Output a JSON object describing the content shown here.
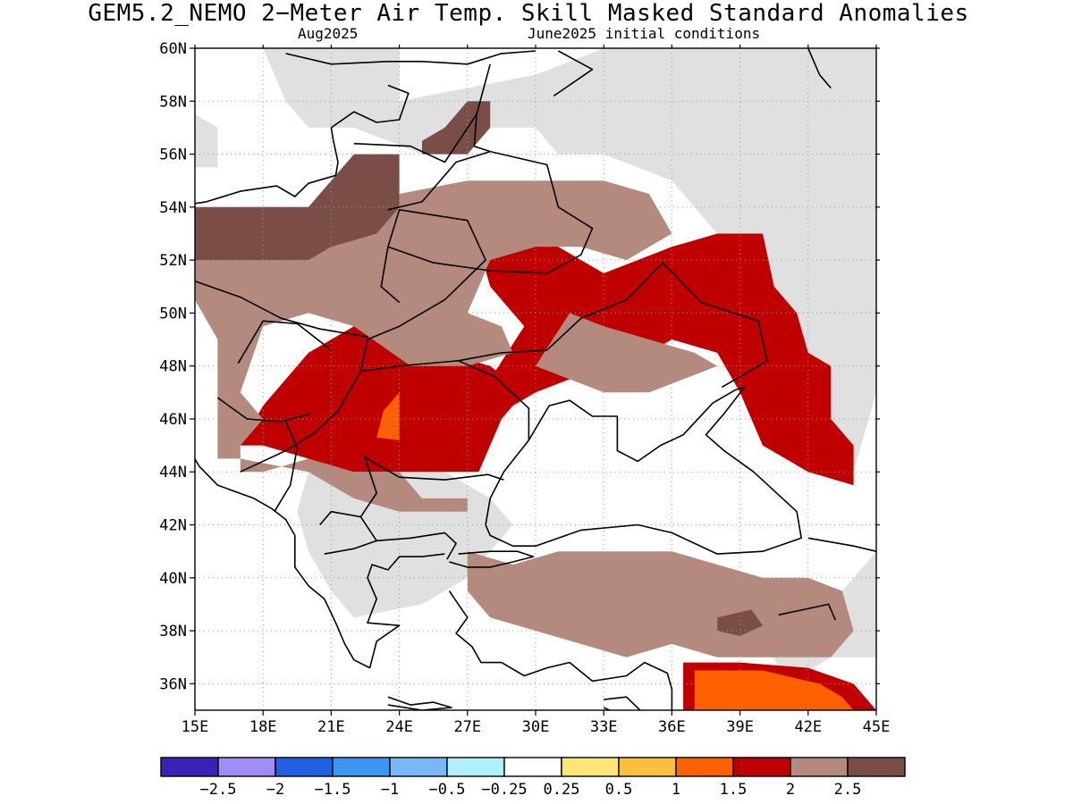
{
  "title": "GEM5.2_NEMO 2−Meter Air Temp. Skill Masked Standard Anomalies",
  "subtitle_left": "Aug2025",
  "subtitle_right": "June2025 initial conditions",
  "map": {
    "lon_range": [
      15,
      45
    ],
    "lat_range": [
      35,
      60
    ],
    "lon_ticks": [
      "15E",
      "18E",
      "21E",
      "24E",
      "27E",
      "30E",
      "33E",
      "36E",
      "39E",
      "42E",
      "45E"
    ],
    "lat_ticks": [
      "36N",
      "38N",
      "40N",
      "42N",
      "44N",
      "46N",
      "48N",
      "50N",
      "52N",
      "54N",
      "56N",
      "58N",
      "60N"
    ],
    "grid": "dotted",
    "masked_color": "#e0e0e0",
    "land_outline_color": "#000000"
  },
  "colorbar": {
    "colors": [
      "#3a22b8",
      "#a08cf4",
      "#2060e6",
      "#3c96f4",
      "#78b8f8",
      "#b0f0fa",
      "#ffffff",
      "#ffe478",
      "#ffbe3c",
      "#ff6000",
      "#c00000",
      "#b48a7e",
      "#7a4e46"
    ],
    "labels": [
      "−2.5",
      "−2",
      "−1.5",
      "−1",
      "−0.5",
      "−0.25",
      "0.25",
      "0.5",
      "1",
      "1.5",
      "2",
      "2.5"
    ]
  },
  "regions": [
    {
      "name": "masked-north",
      "category": "masked"
    },
    {
      "name": "masked-east",
      "category": "masked"
    },
    {
      "name": "masked-west",
      "category": "masked"
    },
    {
      "name": "masked-balkans",
      "category": "masked"
    },
    {
      "name": "masked-romania",
      "category": "masked"
    },
    {
      "name": "anomaly-1.5-2-central-europe",
      "category": "1.5 to 2"
    },
    {
      "name": "anomaly-1.5-2-ukraine-russia",
      "category": "1.5 to 2"
    },
    {
      "name": "anomaly-1.5-2-southeast-turkey",
      "category": "1.5 to 2"
    },
    {
      "name": "anomaly-1-1.5-romania",
      "category": "1 to 1.5"
    },
    {
      "name": "anomaly-1-1.5-syria",
      "category": "1 to 1.5"
    },
    {
      "name": "anomaly-2-2.5-poland",
      "category": "2 to 2.5"
    },
    {
      "name": "anomaly-2-2.5-ukraine",
      "category": "2 to 2.5"
    },
    {
      "name": "anomaly-2-2.5-turkey",
      "category": "2 to 2.5"
    },
    {
      "name": "anomaly-gt2.5-germany",
      "category": "> 2.5"
    },
    {
      "name": "anomaly-gt2.5-baltic",
      "category": "> 2.5"
    },
    {
      "name": "anomaly-gt2.5-turkey",
      "category": "> 2.5"
    }
  ]
}
